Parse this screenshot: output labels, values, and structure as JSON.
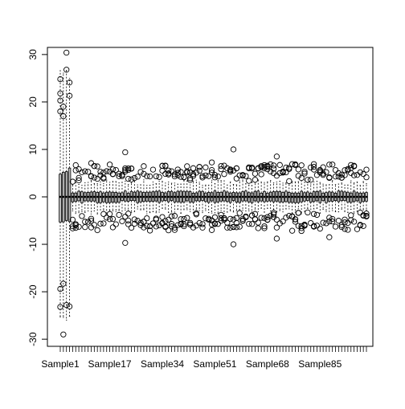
{
  "chart_data": {
    "type": "boxplot",
    "title": "",
    "xlabel": "",
    "ylabel": "",
    "ylim": [
      -31.5,
      31.5
    ],
    "y_ticks": [
      -30,
      -20,
      -10,
      0,
      10,
      20,
      30
    ],
    "y_tick_labels": [
      "-30",
      "-20",
      "-10",
      "0",
      "10",
      "20",
      "30"
    ],
    "x_tick_labels": [
      "Sample1",
      "Sample17",
      "Sample34",
      "Sample51",
      "Sample68",
      "Sample85"
    ],
    "x_tick_label_indices": [
      1,
      17,
      34,
      51,
      68,
      85
    ],
    "n_samples": 100,
    "box_fill": "#bebebe",
    "grid": false,
    "legend": "none",
    "samples_summary": {
      "samples_1_to_4": {
        "median": 0,
        "q1_approx": -5,
        "q3_approx": 5,
        "whiskers_approx": [
          -26,
          26
        ],
        "outliers": [
          [
            18.0,
            20.3,
            21.8,
            24.8,
            -19.4,
            -23.2
          ],
          [
            17.0,
            19.0,
            -18.3,
            -29.0
          ],
          [
            26.8,
            30.4,
            -22.8
          ],
          [
            21.3,
            24.1,
            -23.1
          ]
        ]
      },
      "samples_5_to_100": {
        "median": 0,
        "q1_approx": -1,
        "q3_approx": 1,
        "whiskers_approx": [
          -3,
          3
        ],
        "outlier_range_approx": [
          -10,
          10
        ],
        "notable_outliers": [
          9.4,
          -9.7,
          10.0,
          -10.0,
          8.5,
          -8.8,
          6.8,
          -8.5
        ]
      }
    }
  }
}
